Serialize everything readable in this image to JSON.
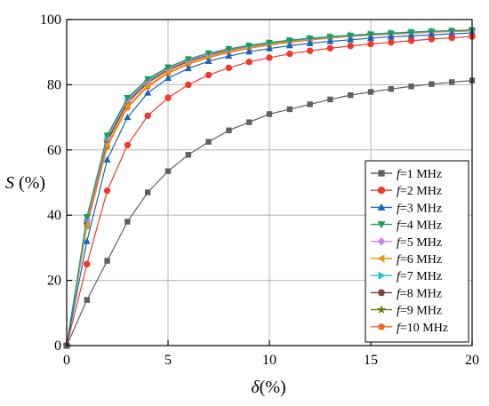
{
  "chart_data": {
    "type": "line",
    "title": "",
    "xlabel_symbol": "δ",
    "xlabel_unit": "(%)",
    "ylabel_symbol": "S",
    "ylabel_unit": " (%)",
    "xlim": [
      0,
      20
    ],
    "ylim": [
      0,
      100
    ],
    "xticks": [
      "0",
      "5",
      "10",
      "15",
      "20"
    ],
    "yticks": [
      "0",
      "20",
      "40",
      "60",
      "80",
      "100"
    ],
    "grid": true,
    "legend_position": "bottom-right",
    "x": [
      0,
      1,
      2,
      3,
      4,
      5,
      6,
      7,
      8,
      9,
      10,
      11,
      12,
      13,
      14,
      15,
      16,
      17,
      18,
      19,
      20
    ],
    "series": [
      {
        "name_var": "f",
        "name_rest": "=1 MHz",
        "color": "#606060",
        "marker": "square",
        "values": [
          0,
          14,
          26,
          38,
          47,
          53.5,
          58.5,
          62.5,
          66,
          68.5,
          71,
          72.5,
          74,
          75.5,
          76.8,
          77.8,
          78.7,
          79.5,
          80.2,
          80.8,
          81.3
        ]
      },
      {
        "name_var": "f",
        "name_rest": "=2 MHz",
        "color": "#f0392b",
        "marker": "circle",
        "values": [
          0,
          25,
          47.5,
          61.5,
          70.5,
          76,
          80,
          83,
          85.2,
          87,
          88.3,
          89.5,
          90.4,
          91.2,
          91.9,
          92.5,
          93,
          93.5,
          94,
          94.4,
          94.8
        ]
      },
      {
        "name_var": "f",
        "name_rest": "=3 MHz",
        "color": "#1565c0",
        "marker": "triangle-up",
        "values": [
          0,
          32,
          57,
          70,
          77.5,
          82,
          85,
          87.2,
          88.8,
          90.1,
          91.1,
          92,
          92.7,
          93.3,
          93.8,
          94.3,
          94.7,
          95,
          95.3,
          95.6,
          95.9
        ]
      },
      {
        "name_var": "f",
        "name_rest": "=4 MHz",
        "color": "#15a05a",
        "marker": "triangle-down",
        "values": [
          0,
          39.5,
          64.5,
          76,
          81.8,
          85.4,
          87.9,
          89.7,
          91,
          92,
          92.9,
          93.6,
          94.2,
          94.7,
          95.1,
          95.5,
          95.8,
          96.1,
          96.4,
          96.6,
          96.8
        ]
      },
      {
        "name_var": "f",
        "name_rest": "=5 MHz",
        "color": "#c886e8",
        "marker": "diamond",
        "values": [
          0,
          38.5,
          63.5,
          75.3,
          81.2,
          85,
          87.5,
          89.4,
          90.8,
          91.9,
          92.8,
          93.5,
          94.1,
          94.6,
          95,
          95.4,
          95.7,
          96,
          96.3,
          96.5,
          96.7
        ]
      },
      {
        "name_var": "f",
        "name_rest": "=6 MHz",
        "color": "#e69810",
        "marker": "triangle-left",
        "values": [
          0,
          37,
          61.5,
          73.5,
          79.8,
          83.8,
          86.6,
          88.6,
          90.2,
          91.4,
          92.4,
          93.2,
          93.9,
          94.4,
          94.9,
          95.3,
          95.6,
          95.9,
          96.2,
          96.4,
          96.6
        ]
      },
      {
        "name_var": "f",
        "name_rest": "=7 MHz",
        "color": "#1ec3c7",
        "marker": "triangle-right",
        "values": [
          0,
          39,
          64,
          75.6,
          81.4,
          85.2,
          87.7,
          89.6,
          91,
          92.1,
          93,
          93.7,
          94.3,
          94.8,
          95.2,
          95.6,
          95.9,
          96.2,
          96.4,
          96.6,
          96.8
        ]
      },
      {
        "name_var": "f",
        "name_rest": "=8 MHz",
        "color": "#7a3f35",
        "marker": "hexagon",
        "values": [
          0,
          37.5,
          62.5,
          74.5,
          80.6,
          84.5,
          87.1,
          89.1,
          90.6,
          91.8,
          92.7,
          93.5,
          94.1,
          94.6,
          95,
          95.4,
          95.7,
          96,
          96.3,
          96.5,
          96.7
        ]
      },
      {
        "name_var": "f",
        "name_rest": "=9 MHz",
        "color": "#6b7a12",
        "marker": "star",
        "values": [
          0,
          38,
          63,
          75,
          81,
          84.8,
          87.4,
          89.3,
          90.8,
          91.9,
          92.8,
          93.6,
          94.2,
          94.7,
          95.1,
          95.5,
          95.8,
          96.1,
          96.3,
          96.5,
          96.7
        ]
      },
      {
        "name_var": "f",
        "name_rest": "=10 MHz",
        "color": "#ef6a1b",
        "marker": "pentagon",
        "values": [
          0,
          36.5,
          61,
          73,
          79.4,
          83.5,
          86.3,
          88.3,
          89.9,
          91.2,
          92.2,
          93,
          93.7,
          94.3,
          94.8,
          95.2,
          95.5,
          95.8,
          96.1,
          96.3,
          96.5
        ]
      }
    ]
  }
}
